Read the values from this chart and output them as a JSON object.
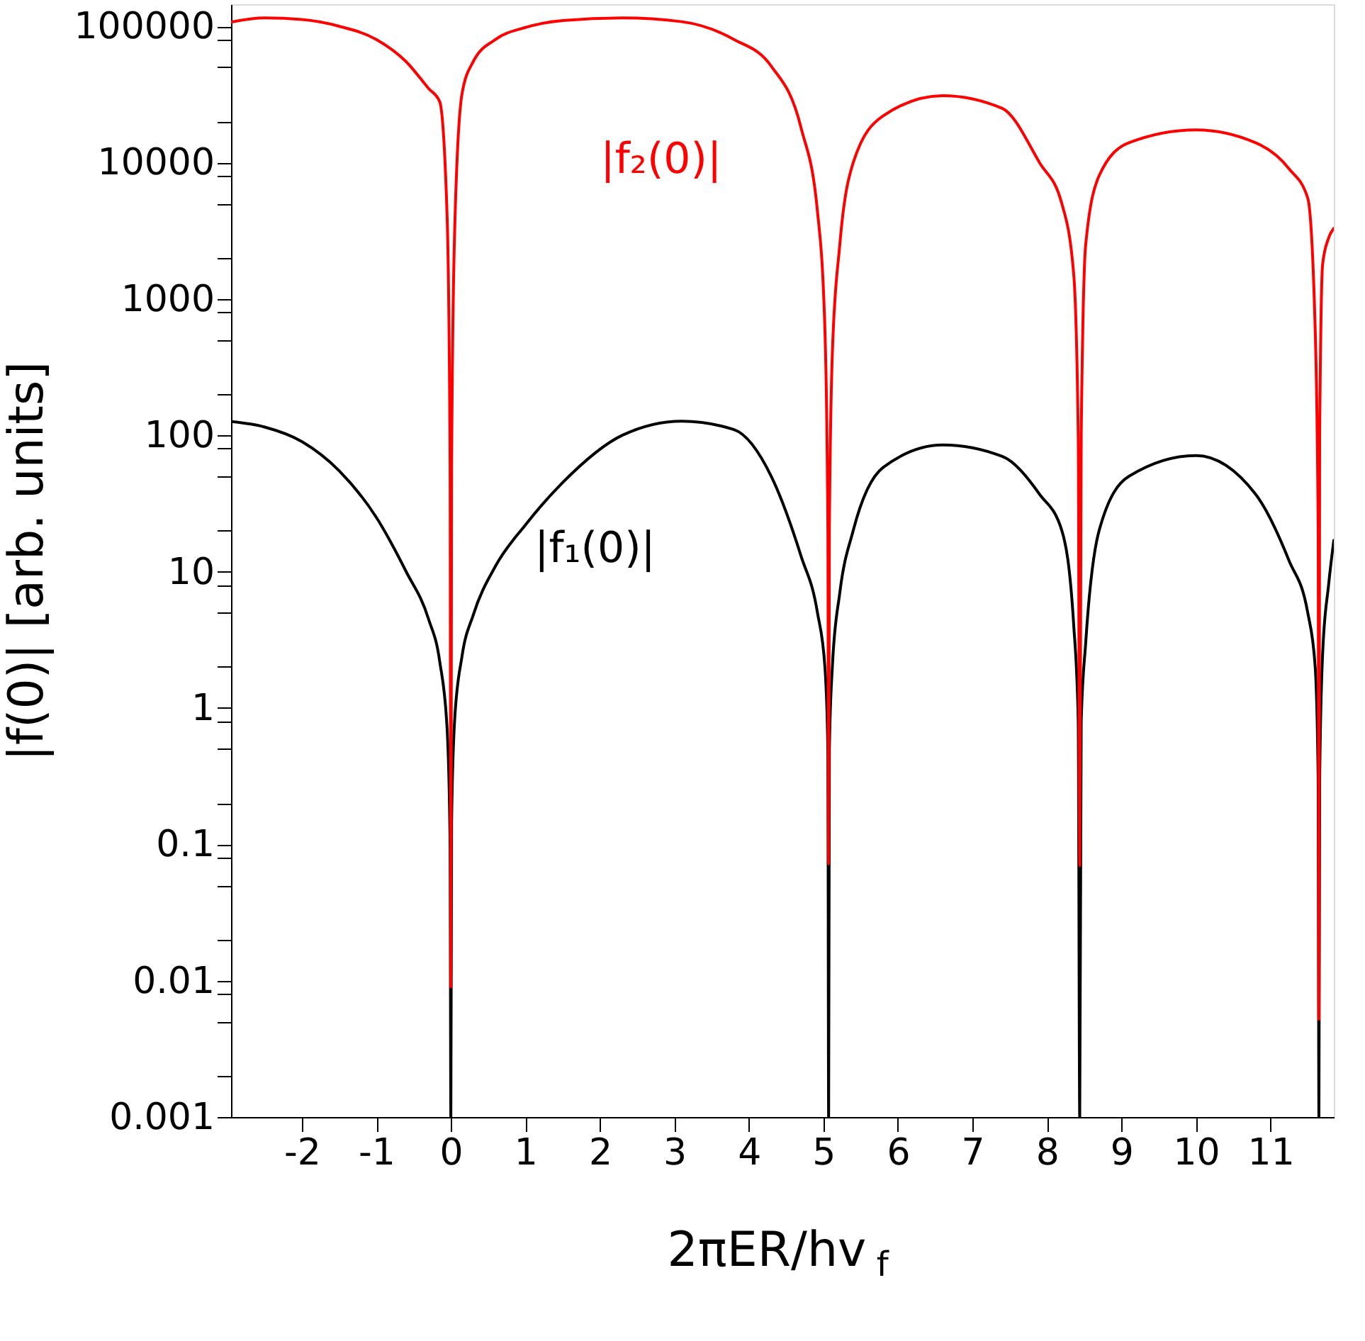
{
  "chart_data": {
    "type": "line",
    "xlabel": "2πER/hv$_{f}$",
    "ylabel": "|f(0)| [arb. units]",
    "log": "y",
    "grid": false,
    "line_style": "solid",
    "marker": "none",
    "xlim": [
      -2.95,
      11.85
    ],
    "xticks": [
      -2,
      -1,
      0,
      1,
      2,
      3,
      4,
      5,
      6,
      7,
      8,
      9,
      10,
      11
    ],
    "ylim": [
      0.001,
      145000
    ],
    "yticks": [
      0.001,
      {
        "value": 0.002,
        "label": null
      },
      {
        "value": 0.005,
        "label": null
      },
      {
        "value": 0.008,
        "label": null
      },
      0.01,
      {
        "value": 0.02,
        "label": null
      },
      {
        "value": 0.05,
        "label": null
      },
      {
        "value": 0.08,
        "label": null
      },
      0.1,
      {
        "value": 0.2,
        "label": null
      },
      {
        "value": 0.5,
        "label": null
      },
      {
        "value": 0.8,
        "label": null
      },
      1,
      {
        "value": 2,
        "label": null
      },
      {
        "value": 5,
        "label": null
      },
      {
        "value": 8,
        "label": null
      },
      10,
      {
        "value": 20,
        "label": null
      },
      {
        "value": 50,
        "label": null
      },
      {
        "value": 80,
        "label": null
      },
      100,
      {
        "value": 200,
        "label": null
      },
      {
        "value": 500,
        "label": null
      },
      {
        "value": 800,
        "label": null
      },
      1000,
      {
        "value": 2000,
        "label": null
      },
      {
        "value": 5000,
        "label": null
      },
      {
        "value": 8000,
        "label": null
      },
      10000,
      {
        "value": 20000,
        "label": null
      },
      {
        "value": 50000,
        "label": null
      },
      {
        "value": 80000,
        "label": null
      },
      100000
    ],
    "x": [
      -2.95,
      -2.5,
      -2,
      -1.5,
      -1,
      -0.6,
      -0.3,
      -0.15,
      -0.05,
      -0.01,
      0,
      0.01,
      0.05,
      0.15,
      0.3,
      0.6,
      1,
      1.5,
      2.3,
      3.1,
      3.8,
      4.3,
      4.7,
      4.92,
      5.02,
      5.06,
      5.07,
      5.08,
      5.12,
      5.22,
      5.4,
      5.8,
      6.6,
      7.4,
      7.9,
      8.2,
      8.36,
      8.42,
      8.44,
      8.46,
      8.52,
      8.7,
      9.1,
      10.0,
      10.8,
      11.25,
      11.5,
      11.6,
      11.64,
      11.65,
      11.66,
      11.7,
      11.78,
      11.85
    ],
    "series": [
      {
        "name": "|f₂(0)|",
        "color": "#ff0000",
        "values": [
          107000,
          115000,
          112000,
          100000,
          80000,
          55000,
          35000,
          28000,
          4000,
          60,
          0.009,
          60,
          3000,
          32000,
          55000,
          80000,
          98000,
          110000,
          115000,
          108000,
          80000,
          51000,
          18000,
          4400,
          600,
          20,
          0.072,
          20,
          400,
          2500,
          10000,
          22000,
          31000,
          25000,
          10000,
          5000,
          1500,
          100,
          0.07,
          100,
          2500,
          8000,
          14000,
          17400,
          14000,
          9000,
          5500,
          600,
          20,
          0.0052,
          100,
          1800,
          2800,
          3300
        ]
      },
      {
        "name": "|f₁(0)|",
        "color": "#000000",
        "values": [
          126,
          115,
          90,
          55,
          25,
          10,
          4.5,
          2.2,
          0.7,
          0.1,
          0.001,
          0.15,
          0.8,
          2.4,
          4.8,
          11,
          22,
          45,
          100,
          127,
          110,
          50,
          13,
          5,
          2,
          0.5,
          0.001,
          0.5,
          2,
          7,
          20,
          58,
          85,
          70,
          37,
          20,
          4,
          0.8,
          0.001,
          0.8,
          3,
          20,
          50,
          71,
          37,
          12,
          5,
          2,
          0.3,
          0.001,
          0.3,
          2.5,
          8,
          17
        ]
      }
    ]
  }
}
